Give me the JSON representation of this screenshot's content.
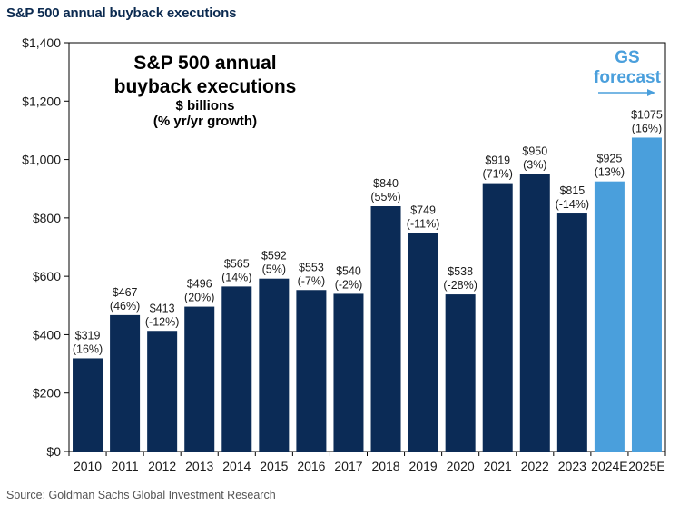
{
  "page_title": "S&P 500 annual buyback executions",
  "source": "Source: Goldman Sachs Global Investment Research",
  "colors": {
    "actual": "#0b2b56",
    "forecast": "#4a9fdc"
  },
  "chart_data": {
    "type": "bar",
    "title_lines": [
      "S&P 500 annual",
      "buyback executions"
    ],
    "subtitle_lines": [
      "$ billions",
      "(% yr/yr growth)"
    ],
    "forecast_label_lines": [
      "GS",
      "forecast"
    ],
    "ylim": [
      0,
      1400
    ],
    "yticks": [
      0,
      200,
      400,
      600,
      800,
      1000,
      1200,
      1400
    ],
    "ytick_labels": [
      "$0",
      "$200",
      "$400",
      "$600",
      "$800",
      "$1,000",
      "$1,200",
      "$1,400"
    ],
    "categories": [
      "2010",
      "2011",
      "2012",
      "2013",
      "2014",
      "2015",
      "2016",
      "2017",
      "2018",
      "2019",
      "2020",
      "2021",
      "2022",
      "2023",
      "2024E",
      "2025E"
    ],
    "values": [
      319,
      467,
      413,
      496,
      565,
      592,
      553,
      540,
      840,
      749,
      538,
      919,
      950,
      815,
      925,
      1075
    ],
    "value_labels": [
      "$319",
      "$467",
      "$413",
      "$496",
      "$565",
      "$592",
      "$553",
      "$540",
      "$840",
      "$749",
      "$538",
      "$919",
      "$950",
      "$815",
      "$925",
      "$1075"
    ],
    "growth_labels": [
      "(16%)",
      "(46%)",
      "(-12%)",
      "(20%)",
      "(14%)",
      "(5%)",
      "(-7%)",
      "(-2%)",
      "(55%)",
      "(-11%)",
      "(-28%)",
      "(71%)",
      "(3%)",
      "(-14%)",
      "(13%)",
      "(16%)"
    ],
    "is_forecast": [
      false,
      false,
      false,
      false,
      false,
      false,
      false,
      false,
      false,
      false,
      false,
      false,
      false,
      false,
      true,
      true
    ],
    "grid": false
  }
}
